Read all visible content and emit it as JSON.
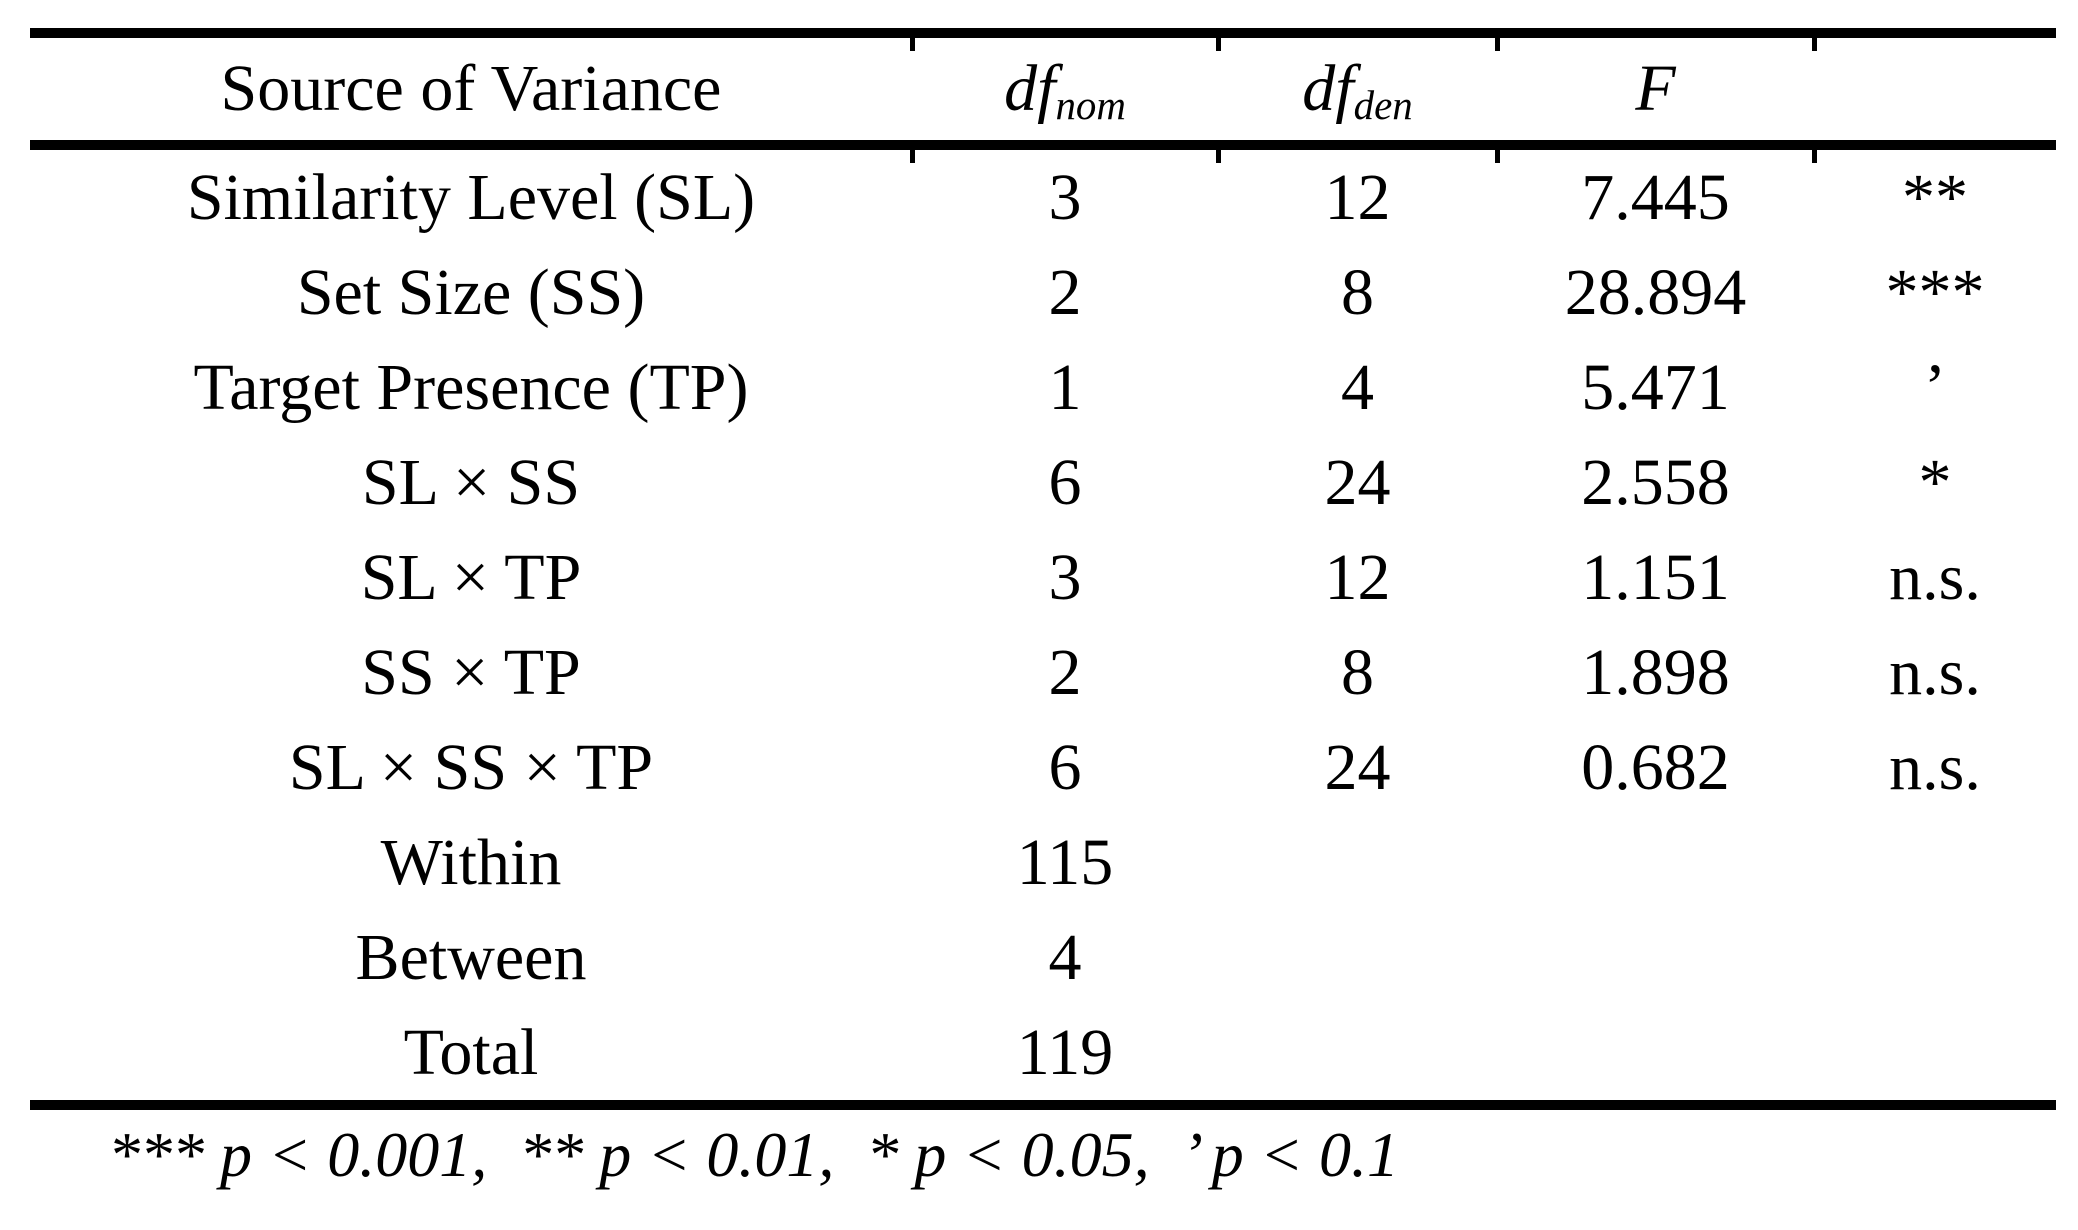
{
  "table": {
    "header": {
      "source": "Source of Variance",
      "df": "df",
      "nom": "nom",
      "den": "den",
      "f": "F",
      "sig": ""
    },
    "rows": [
      {
        "source": "Similarity Level (SL)",
        "df_nom": "3",
        "df_den": "12",
        "f": "7.445",
        "sig": "**"
      },
      {
        "source": "Set Size (SS)",
        "df_nom": "2",
        "df_den": "8",
        "f": "28.894",
        "sig": "***"
      },
      {
        "source": "Target Presence (TP)",
        "df_nom": "1",
        "df_den": "4",
        "f": "5.471",
        "sig": "’"
      },
      {
        "source": "SL × SS",
        "df_nom": "6",
        "df_den": "24",
        "f": "2.558",
        "sig": "*"
      },
      {
        "source": "SL × TP",
        "df_nom": "3",
        "df_den": "12",
        "f": "1.151",
        "sig": "n.s."
      },
      {
        "source": "SS × TP",
        "df_nom": "2",
        "df_den": "8",
        "f": "1.898",
        "sig": "n.s."
      },
      {
        "source": "SL × SS × TP",
        "df_nom": "6",
        "df_den": "24",
        "f": "0.682",
        "sig": "n.s."
      },
      {
        "source": "Within",
        "df_nom": "115",
        "df_den": "",
        "f": "",
        "sig": ""
      },
      {
        "source": "Between",
        "df_nom": "4",
        "df_den": "",
        "f": "",
        "sig": ""
      },
      {
        "source": "Total",
        "df_nom": "119",
        "df_den": "",
        "f": "",
        "sig": ""
      }
    ],
    "footnote": "*** p < 0.001,  ** p < 0.01,  * p < 0.05,  ’ p < 0.1"
  },
  "colors": {
    "text": "#000000",
    "background": "#ffffff",
    "rule": "#000000"
  }
}
